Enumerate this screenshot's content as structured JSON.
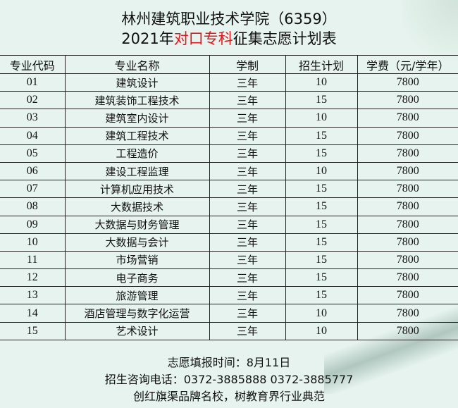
{
  "header": {
    "line1": "林州建筑职业技术学院（6359）",
    "line2_a": "2021年",
    "line2_highlight": "对口专科",
    "line2_b": "征集志愿计划表",
    "highlight_color": "#e4161c"
  },
  "table": {
    "columns": [
      "专业代码",
      "专业名称",
      "学制",
      "招生计划",
      "学费（元/学年）"
    ],
    "rows": [
      [
        "01",
        "建筑设计",
        "三年",
        "10",
        "7800"
      ],
      [
        "02",
        "建筑装饰工程技术",
        "三年",
        "15",
        "7800"
      ],
      [
        "03",
        "建筑室内设计",
        "三年",
        "10",
        "7800"
      ],
      [
        "04",
        "建筑工程技术",
        "三年",
        "15",
        "7800"
      ],
      [
        "05",
        "工程造价",
        "三年",
        "15",
        "7800"
      ],
      [
        "06",
        "建设工程监理",
        "三年",
        "10",
        "7800"
      ],
      [
        "07",
        "计算机应用技术",
        "三年",
        "15",
        "7800"
      ],
      [
        "08",
        "大数据技术",
        "三年",
        "15",
        "7800"
      ],
      [
        "09",
        "大数据与财务管理",
        "三年",
        "15",
        "7800"
      ],
      [
        "10",
        "大数据与会计",
        "三年",
        "15",
        "7800"
      ],
      [
        "11",
        "市场营销",
        "三年",
        "15",
        "7800"
      ],
      [
        "12",
        "电子商务",
        "三年",
        "15",
        "7800"
      ],
      [
        "13",
        "旅游管理",
        "三年",
        "15",
        "7800"
      ],
      [
        "14",
        "酒店管理与数字化运营",
        "三年",
        "10",
        "7800"
      ],
      [
        "15",
        "艺术设计",
        "三年",
        "10",
        "7800"
      ]
    ]
  },
  "footer": {
    "deadline": "志愿填报时间：8月11日",
    "phone": "招生咨询电话：0372-3885888  0372-3885777",
    "slogan": "创红旗渠品牌名校，树教育界行业典范"
  }
}
